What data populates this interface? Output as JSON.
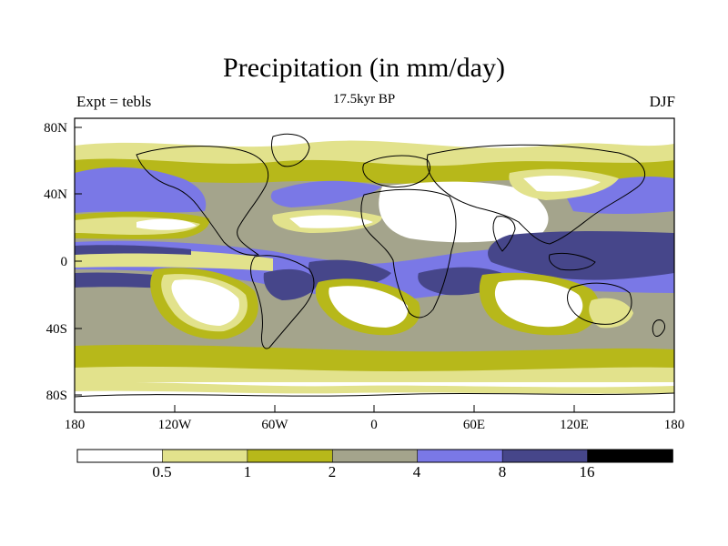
{
  "title": "Precipitation (in mm/day)",
  "subtitle": "17.5kyr BP",
  "left_label": "Expt = tebls",
  "right_label": "DJF",
  "colors": {
    "land_outline": "#000000",
    "background": "#ffffff"
  },
  "latitude_ticks": [
    "80N",
    "40N",
    "0",
    "40S",
    "80S"
  ],
  "longitude_ticks": [
    "180",
    "120W",
    "60W",
    "0",
    "60E",
    "120E",
    "180"
  ],
  "colorbar": {
    "labels": [
      "0.5",
      "1",
      "2",
      "4",
      "8",
      "16"
    ],
    "colors": [
      "#ffffff",
      "#e2e28c",
      "#b7b81a",
      "#a4a48c",
      "#7a78e6",
      "#46468a",
      "#000000"
    ]
  },
  "chart_data": {
    "type": "heatmap",
    "title": "Precipitation (in mm/day)",
    "subtitle": "17.5kyr BP",
    "variable": "Precipitation",
    "units": "mm/day",
    "experiment": "tebls",
    "season": "DJF",
    "lon_range": [
      -180,
      180
    ],
    "lat_range": [
      -90,
      90
    ],
    "contour_levels": [
      0.5,
      1,
      2,
      4,
      8,
      16
    ]
  }
}
